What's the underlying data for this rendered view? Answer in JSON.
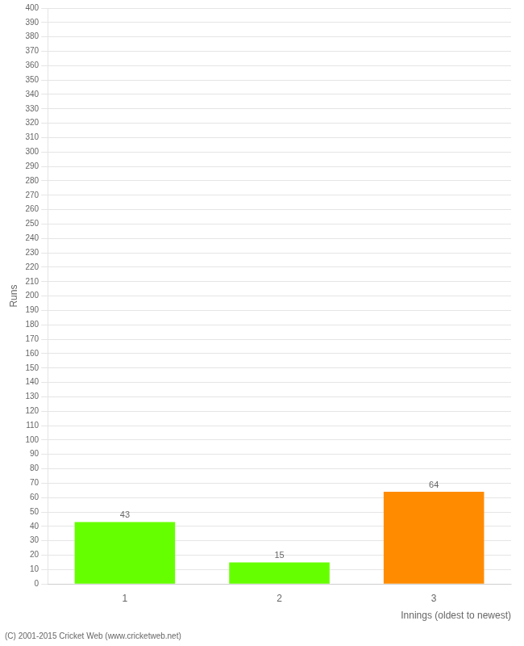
{
  "chart_data": {
    "type": "bar",
    "categories": [
      "1",
      "2",
      "3"
    ],
    "values": [
      43,
      15,
      64
    ],
    "colors": [
      "#66ff00",
      "#66ff00",
      "#ff8c00"
    ],
    "ylabel": "Runs",
    "xlabel": "Innings (oldest to newest)",
    "annotations": [
      "(C) 2001-2015 Cricket Web (www.cricketweb.net)"
    ],
    "ylim": [
      0,
      400
    ],
    "yticks": [
      0,
      10,
      20,
      30,
      40,
      50,
      60,
      70,
      80,
      90,
      100,
      110,
      120,
      130,
      140,
      150,
      160,
      170,
      180,
      190,
      200,
      210,
      220,
      230,
      240,
      250,
      260,
      270,
      280,
      290,
      300,
      310,
      320,
      330,
      340,
      350,
      360,
      370,
      380,
      390,
      400
    ],
    "grid": true,
    "data_labels": true
  }
}
